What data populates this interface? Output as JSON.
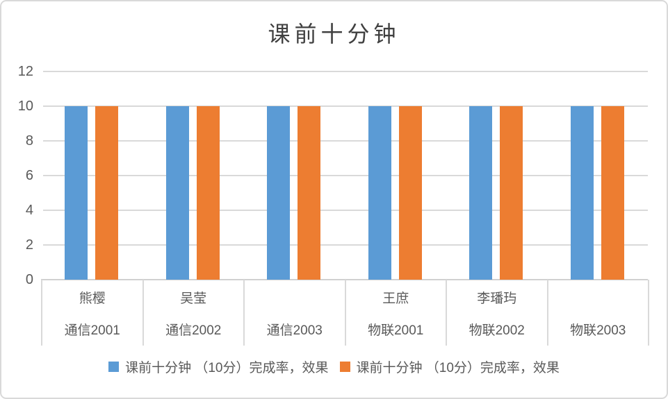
{
  "title": "课前十分钟",
  "chart_data": {
    "type": "bar",
    "title": "课前十分钟",
    "categories": [
      {
        "line1": "熊樱",
        "line2": "通信2001"
      },
      {
        "line1": "吴莹",
        "line2": "通信2002"
      },
      {
        "line1": "",
        "line2": "通信2003"
      },
      {
        "line1": "王庶",
        "line2": "物联2001"
      },
      {
        "line1": "李璠玙",
        "line2": "物联2002"
      },
      {
        "line1": "",
        "line2": "物联2003"
      }
    ],
    "series": [
      {
        "name": "课前十分钟 （10分）完成率，效果",
        "color": "#5B9BD5",
        "values": [
          10,
          10,
          10,
          10,
          10,
          10
        ]
      },
      {
        "name": "课前十分钟 （10分）完成率，效果",
        "color": "#ED7D31",
        "values": [
          10,
          10,
          10,
          10,
          10,
          10
        ]
      }
    ],
    "ylim": [
      0,
      12
    ],
    "ytick_step": 2,
    "yticks": [
      0,
      2,
      4,
      6,
      8,
      10,
      12
    ],
    "grid": true,
    "legend_position": "bottom"
  },
  "colors": {
    "bar_blue": "#5B9BD5",
    "bar_orange": "#ED7D31",
    "gridline": "#D9D9D9",
    "axis_text": "#595959",
    "title_text": "#404040",
    "frame_border": "#D9D9D9"
  }
}
